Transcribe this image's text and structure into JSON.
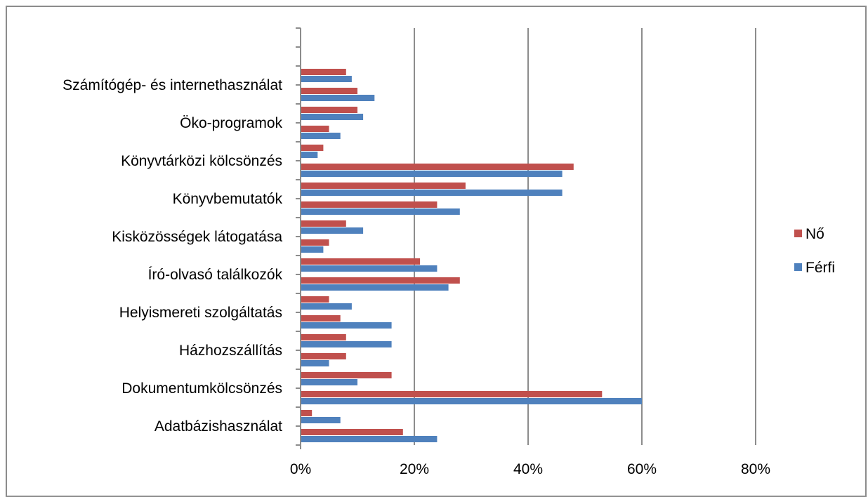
{
  "chart_data": {
    "type": "bar",
    "orientation": "horizontal",
    "categories": [
      "Adatbázishasználat",
      "",
      "Dokumentumkölcsönzés",
      "",
      "Házhozszállítás",
      "",
      "Helyismereti szolgáltatás",
      "",
      "Író-olvasó találkozók",
      "",
      "Kisközösségek látogatása",
      "",
      "Könyvbemutatók",
      "",
      "Könyvtárközi kölcsönzés",
      "",
      "Öko-programok",
      "",
      "Számítógép- és internethasználat",
      "",
      "",
      ""
    ],
    "series": [
      {
        "name": "Nő",
        "color": "#c0504d",
        "values": [
          18,
          2,
          53,
          16,
          8,
          8,
          7,
          5,
          28,
          21,
          5,
          8,
          24,
          29,
          48,
          4,
          5,
          10,
          10,
          8,
          null,
          null
        ]
      },
      {
        "name": "Férfi",
        "color": "#4f81bd",
        "values": [
          24,
          7,
          60,
          10,
          5,
          16,
          16,
          9,
          26,
          24,
          4,
          11,
          28,
          46,
          46,
          3,
          7,
          11,
          13,
          9,
          null,
          null
        ]
      }
    ],
    "xlim": [
      0,
      80
    ],
    "xticks": [
      "0%",
      "20%",
      "40%",
      "60%",
      "80%"
    ],
    "grid": true,
    "legend_position": "right",
    "legend": [
      "Nő",
      "Férfi"
    ]
  }
}
